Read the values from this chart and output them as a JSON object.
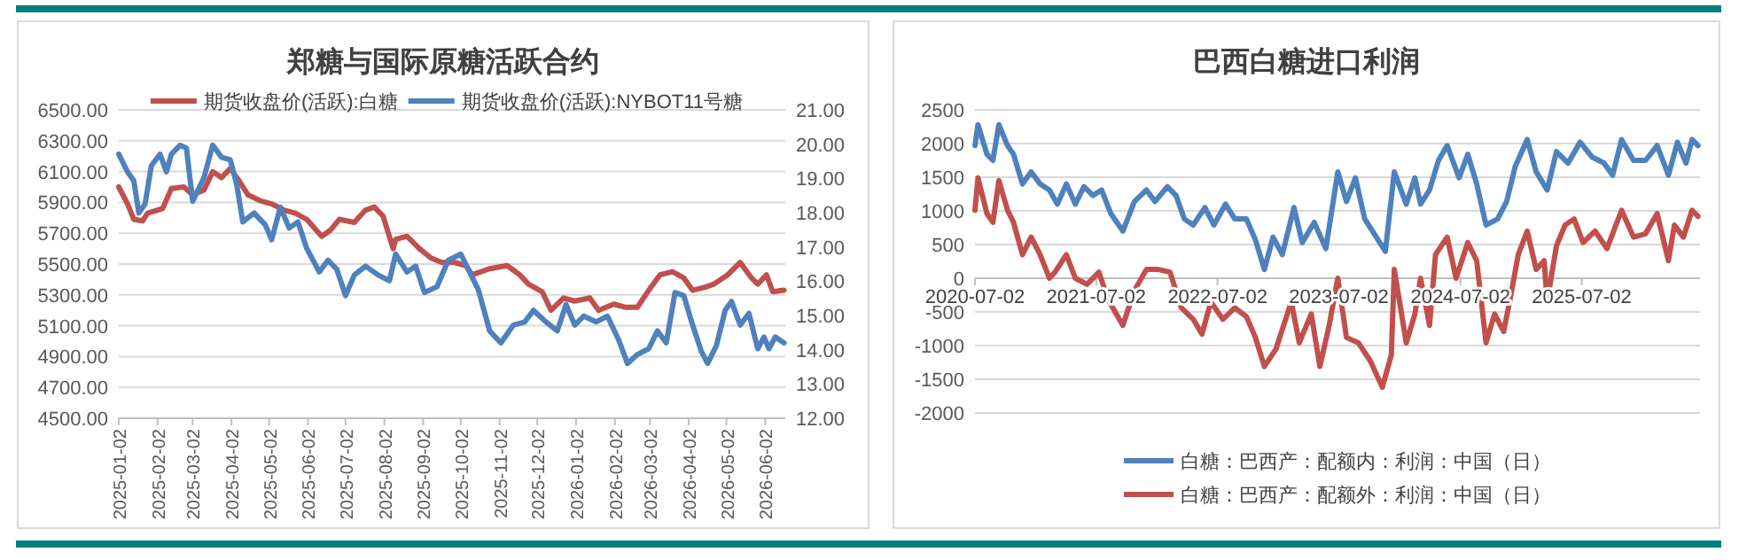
{
  "chart_data": [
    {
      "type": "line",
      "title": "郑糖与国际原糖活跃合约",
      "legend": "top",
      "grid": "y",
      "xlim": [
        "2025-01-02",
        "2026-06-18"
      ],
      "xticks": [
        "2025-01-02",
        "2025-02-02",
        "2025-03-02",
        "2025-04-02",
        "2025-05-02",
        "2025-06-02",
        "2025-07-02",
        "2025-08-02",
        "2025-09-02",
        "2025-10-02",
        "2025-11-02",
        "2025-12-02",
        "2026-01-02",
        "2026-02-02",
        "2026-03-02",
        "2026-04-02",
        "2026-05-02",
        "2026-06-02"
      ],
      "ylim": [
        4500,
        6500
      ],
      "yticks": [
        {
          "value": 4500,
          "label": "4500.00"
        },
        {
          "value": 4700,
          "label": "4700.00"
        },
        {
          "value": 4900,
          "label": "4900.00"
        },
        {
          "value": 5100,
          "label": "5100.00"
        },
        {
          "value": 5300,
          "label": "5300.00"
        },
        {
          "value": 5500,
          "label": "5500.00"
        },
        {
          "value": 5700,
          "label": "5700.00"
        },
        {
          "value": 5900,
          "label": "5900.00"
        },
        {
          "value": 6100,
          "label": "6100.00"
        },
        {
          "value": 6300,
          "label": "6300.00"
        },
        {
          "value": 6500,
          "label": "6500.00"
        }
      ],
      "y2lim": [
        12,
        21
      ],
      "y2ticks": [
        {
          "value": 12,
          "label": "12.00"
        },
        {
          "value": 13,
          "label": "13.00"
        },
        {
          "value": 14,
          "label": "14.00"
        },
        {
          "value": 15,
          "label": "15.00"
        },
        {
          "value": 16,
          "label": "16.00"
        },
        {
          "value": 17,
          "label": "17.00"
        },
        {
          "value": 18,
          "label": "18.00"
        },
        {
          "value": 19,
          "label": "19.00"
        },
        {
          "value": 20,
          "label": "20.00"
        },
        {
          "value": 21,
          "label": "21.00"
        }
      ],
      "series": [
        {
          "name": "期货收盘价(活跃):白糖",
          "color": "#c0504d",
          "x": [
            "2025-01-02",
            "2025-01-09",
            "2025-01-14",
            "2025-01-21",
            "2025-01-25",
            "2025-02-06",
            "2025-02-13",
            "2025-02-23",
            "2025-03-02",
            "2025-03-11",
            "2025-03-18",
            "2025-03-25",
            "2025-04-01",
            "2025-04-08",
            "2025-04-15",
            "2025-04-25",
            "2025-05-04",
            "2025-05-14",
            "2025-05-23",
            "2025-06-01",
            "2025-06-13",
            "2025-06-20",
            "2025-06-27",
            "2025-07-09",
            "2025-07-18",
            "2025-07-25",
            "2025-08-01",
            "2025-08-09",
            "2025-08-11",
            "2025-08-20",
            "2025-08-30",
            "2025-09-08",
            "2025-09-17",
            "2025-09-27",
            "2025-10-06",
            "2025-10-11",
            "2025-10-25",
            "2025-11-08",
            "2025-11-18",
            "2025-11-25",
            "2025-12-06",
            "2025-12-13",
            "2025-12-23",
            "2026-01-01",
            "2026-01-13",
            "2026-01-20",
            "2026-02-01",
            "2026-02-10",
            "2026-02-20",
            "2026-03-01",
            "2026-03-10",
            "2026-03-20",
            "2026-03-29",
            "2026-04-05",
            "2026-04-15",
            "2026-04-22",
            "2026-05-03",
            "2026-05-13",
            "2026-05-22",
            "2026-05-27",
            "2026-06-03",
            "2026-06-08",
            "2026-06-17"
          ],
          "values": [
            6000,
            5890,
            5790,
            5780,
            5830,
            5860,
            5990,
            6000,
            5950,
            5980,
            6100,
            6060,
            6120,
            6040,
            5950,
            5910,
            5890,
            5850,
            5830,
            5790,
            5680,
            5720,
            5790,
            5770,
            5850,
            5870,
            5810,
            5600,
            5660,
            5680,
            5600,
            5540,
            5510,
            5510,
            5490,
            5430,
            5470,
            5490,
            5430,
            5370,
            5320,
            5200,
            5280,
            5260,
            5280,
            5200,
            5240,
            5220,
            5220,
            5330,
            5430,
            5450,
            5410,
            5330,
            5350,
            5370,
            5430,
            5510,
            5410,
            5370,
            5430,
            5320,
            5330
          ]
        },
        {
          "name": "期货收盘价(活跃):NYBOT11号糖",
          "color": "#4f81bd",
          "axis": "y2",
          "x": [
            "2025-01-02",
            "2025-01-09",
            "2025-01-14",
            "2025-01-18",
            "2025-01-23",
            "2025-01-28",
            "2025-02-04",
            "2025-02-09",
            "2025-02-13",
            "2025-02-20",
            "2025-02-25",
            "2025-03-02",
            "2025-03-11",
            "2025-03-18",
            "2025-03-25",
            "2025-04-01",
            "2025-04-06",
            "2025-04-11",
            "2025-04-20",
            "2025-04-29",
            "2025-05-04",
            "2025-05-11",
            "2025-05-18",
            "2025-05-25",
            "2025-06-01",
            "2025-06-11",
            "2025-06-18",
            "2025-06-25",
            "2025-07-02",
            "2025-07-09",
            "2025-07-18",
            "2025-07-28",
            "2025-08-06",
            "2025-08-11",
            "2025-08-20",
            "2025-08-27",
            "2025-09-03",
            "2025-09-13",
            "2025-09-22",
            "2025-10-02",
            "2025-10-09",
            "2025-10-16",
            "2025-10-25",
            "2025-11-03",
            "2025-11-13",
            "2025-11-22",
            "2025-11-29",
            "2025-12-09",
            "2025-12-18",
            "2025-12-25",
            "2026-01-01",
            "2026-01-08",
            "2026-01-18",
            "2026-01-27",
            "2026-02-05",
            "2026-02-12",
            "2026-02-20",
            "2026-03-01",
            "2026-03-08",
            "2026-03-15",
            "2026-03-22",
            "2026-03-29",
            "2026-04-05",
            "2026-04-12",
            "2026-04-17",
            "2026-04-24",
            "2026-05-01",
            "2026-05-06",
            "2026-05-13",
            "2026-05-20",
            "2026-05-27",
            "2026-06-01",
            "2026-06-05",
            "2026-06-10",
            "2026-06-17"
          ],
          "values": [
            19.71,
            19.19,
            18.93,
            17.99,
            18.25,
            19.37,
            19.71,
            19.19,
            19.71,
            19.97,
            19.88,
            18.33,
            19.02,
            19.97,
            19.62,
            19.54,
            18.85,
            17.73,
            17.99,
            17.64,
            17.21,
            18.16,
            17.55,
            17.73,
            16.96,
            16.27,
            16.61,
            16.35,
            15.58,
            16.18,
            16.44,
            16.18,
            16.01,
            16.79,
            16.27,
            16.44,
            15.67,
            15.84,
            16.61,
            16.79,
            16.27,
            15.75,
            14.55,
            14.2,
            14.72,
            14.81,
            15.15,
            14.81,
            14.55,
            15.32,
            14.72,
            14.98,
            14.81,
            14.98,
            14.29,
            13.6,
            13.86,
            14.03,
            14.55,
            14.2,
            15.67,
            15.58,
            14.72,
            13.95,
            13.6,
            14.12,
            15.15,
            15.41,
            14.72,
            15.06,
            14.03,
            14.37,
            14.03,
            14.37,
            14.2
          ]
        }
      ]
    },
    {
      "type": "line",
      "title": "巴西白糖进口利润",
      "legend": "bottom",
      "grid": "y",
      "xlim": [
        "2020-07-02",
        "2026-06-23"
      ],
      "xticks": [
        "2020-07-02",
        "2021-07-02",
        "2022-07-02",
        "2023-07-02",
        "2024-07-02",
        "2025-07-02"
      ],
      "ylim": [
        -2000,
        2500
      ],
      "yticks": [
        -2000,
        -1500,
        -1000,
        -500,
        0,
        500,
        1000,
        1500,
        2000,
        2500
      ],
      "series": [
        {
          "name": "白糖：巴西产：配额内：利润：中国（日）",
          "color": "#4f81bd",
          "x": [
            "2020-07-02",
            "2020-07-11",
            "2020-08-07",
            "2020-08-25",
            "2020-09-12",
            "2020-10-08",
            "2020-10-26",
            "2020-11-22",
            "2020-12-18",
            "2021-01-14",
            "2021-02-11",
            "2021-03-07",
            "2021-04-03",
            "2021-04-30",
            "2021-05-26",
            "2021-06-22",
            "2021-07-18",
            "2021-08-15",
            "2021-09-20",
            "2021-10-25",
            "2021-11-30",
            "2021-12-26",
            "2022-02-01",
            "2022-02-27",
            "2022-03-24",
            "2022-04-20",
            "2022-05-25",
            "2022-06-21",
            "2022-07-26",
            "2022-08-23",
            "2022-09-27",
            "2022-10-24",
            "2022-11-20",
            "2022-12-16",
            "2023-01-13",
            "2023-02-17",
            "2023-03-14",
            "2023-04-19",
            "2023-05-24",
            "2023-06-29",
            "2023-07-25",
            "2023-08-21",
            "2023-09-18",
            "2023-10-23",
            "2023-11-19",
            "2023-12-16",
            "2024-01-21",
            "2024-02-16",
            "2024-03-04",
            "2024-03-31",
            "2024-04-27",
            "2024-05-23",
            "2024-06-28",
            "2024-07-24",
            "2024-08-20",
            "2024-09-17",
            "2024-10-22",
            "2024-11-18",
            "2024-12-14",
            "2025-01-19",
            "2025-02-15",
            "2025-03-20",
            "2025-04-17",
            "2025-05-22",
            "2025-06-27",
            "2025-08-02",
            "2025-09-07",
            "2025-10-03",
            "2025-10-30",
            "2025-12-05",
            "2026-01-10",
            "2026-02-14",
            "2026-03-20",
            "2026-04-16",
            "2026-05-12",
            "2026-05-30",
            "2026-06-17"
          ],
          "values": [
            1970,
            2280,
            1840,
            1750,
            2280,
            1970,
            1840,
            1400,
            1580,
            1400,
            1310,
            1100,
            1400,
            1100,
            1360,
            1230,
            1310,
            960,
            700,
            1140,
            1310,
            1140,
            1360,
            1230,
            880,
            790,
            1050,
            790,
            1100,
            880,
            880,
            570,
            130,
            610,
            350,
            1050,
            530,
            830,
            440,
            1580,
            1140,
            1490,
            880,
            610,
            400,
            1580,
            1100,
            1490,
            1100,
            1310,
            1750,
            1970,
            1490,
            1840,
            1400,
            790,
            880,
            1140,
            1660,
            2060,
            1580,
            1310,
            1880,
            1710,
            2020,
            1800,
            1710,
            1530,
            2060,
            1750,
            1750,
            1970,
            1530,
            2020,
            1710,
            2060,
            1970
          ]
        },
        {
          "name": "白糖：巴西产：配额外：利润：中国（日）",
          "color": "#c0504d",
          "x": [
            "2020-07-02",
            "2020-07-11",
            "2020-08-07",
            "2020-08-25",
            "2020-09-12",
            "2020-10-08",
            "2020-10-26",
            "2020-11-22",
            "2020-12-18",
            "2021-01-14",
            "2021-02-11",
            "2021-02-28",
            "2021-04-03",
            "2021-04-30",
            "2021-06-04",
            "2021-07-10",
            "2021-08-06",
            "2021-09-20",
            "2021-10-25",
            "2021-11-30",
            "2022-01-05",
            "2022-02-09",
            "2022-03-15",
            "2022-04-20",
            "2022-05-16",
            "2022-06-12",
            "2022-07-18",
            "2022-08-23",
            "2022-09-27",
            "2022-10-24",
            "2022-11-20",
            "2022-12-25",
            "2023-02-09",
            "2023-03-05",
            "2023-04-10",
            "2023-05-06",
            "2023-06-03",
            "2023-06-29",
            "2023-07-25",
            "2023-08-30",
            "2023-10-05",
            "2023-11-10",
            "2023-12-07",
            "2023-12-16",
            "2024-01-21",
            "2024-02-16",
            "2024-03-04",
            "2024-03-31",
            "2024-04-18",
            "2024-05-23",
            "2024-06-19",
            "2024-07-24",
            "2024-08-20",
            "2024-09-17",
            "2024-10-13",
            "2024-11-09",
            "2024-11-27",
            "2024-12-23",
            "2025-01-19",
            "2025-02-15",
            "2025-03-11",
            "2025-03-20",
            "2025-04-17",
            "2025-05-13",
            "2025-06-09",
            "2025-07-06",
            "2025-08-11",
            "2025-09-16",
            "2025-10-30",
            "2025-12-05",
            "2026-01-10",
            "2026-02-14",
            "2026-03-20",
            "2026-04-07",
            "2026-05-04",
            "2026-05-30",
            "2026-06-17"
          ],
          "values": [
            1010,
            1490,
            960,
            830,
            1450,
            1010,
            830,
            350,
            610,
            350,
            0,
            90,
            350,
            0,
            -90,
            90,
            -310,
            -700,
            -180,
            130,
            130,
            90,
            -440,
            -610,
            -830,
            -350,
            -610,
            -440,
            -570,
            -880,
            -1310,
            -1050,
            -350,
            -960,
            -530,
            -1310,
            -700,
            0,
            -880,
            -960,
            -1230,
            -1620,
            -1140,
            130,
            -960,
            -530,
            0,
            -700,
            350,
            610,
            0,
            530,
            260,
            -960,
            -530,
            -790,
            -350,
            350,
            700,
            130,
            260,
            -350,
            480,
            790,
            880,
            530,
            700,
            440,
            1010,
            610,
            660,
            960,
            260,
            790,
            610,
            1010,
            920
          ]
        }
      ]
    }
  ]
}
